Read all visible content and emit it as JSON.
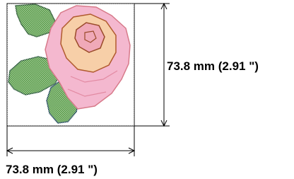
{
  "design": {
    "height_label": "73.8 mm (2.91 \")",
    "width_label": "73.8 mm (2.91 \")"
  }
}
